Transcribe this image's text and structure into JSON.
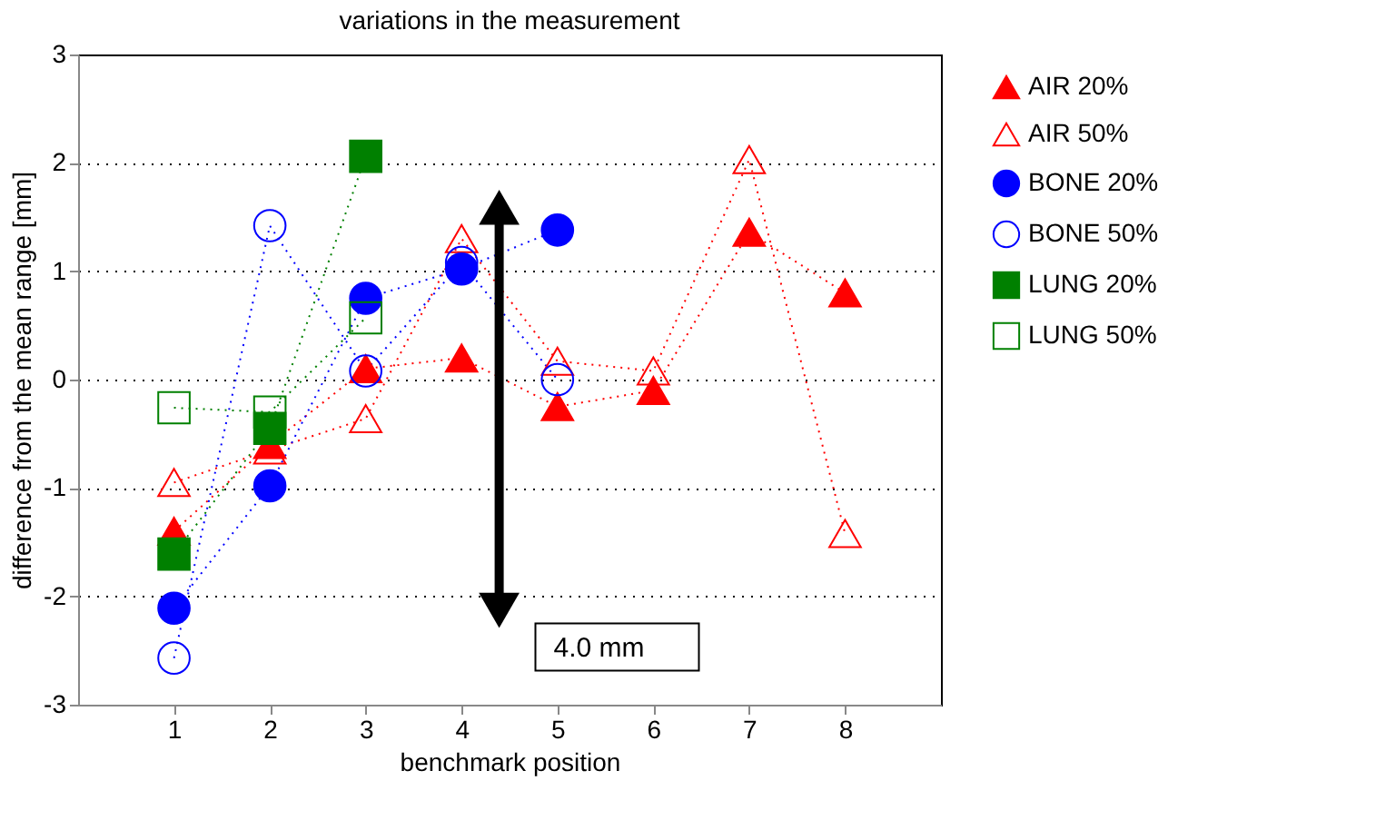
{
  "chart_data": {
    "type": "line",
    "title": "variations in the measurement",
    "xlabel": "benchmark position",
    "ylabel": "difference from the mean range [mm]",
    "x": [
      1,
      2,
      3,
      4,
      5,
      6,
      7,
      8
    ],
    "series": [
      {
        "name": "AIR 20%",
        "color": "#ff0000",
        "marker": "triangle",
        "values": [
          -1.4,
          -0.6,
          0.1,
          0.2,
          -0.25,
          -0.1,
          1.36,
          0.8
        ]
      },
      {
        "name": "AIR 50%",
        "color": "#ff0000",
        "marker": "triangle-open",
        "values": [
          -0.95,
          -0.65,
          -0.36,
          1.3,
          0.17,
          0.08,
          2.03,
          -1.42
        ]
      },
      {
        "name": "BONE 20%",
        "color": "#0000ff",
        "marker": "circle",
        "values": [
          -2.11,
          -0.98,
          0.75,
          1.02,
          1.38,
          null,
          null,
          null
        ]
      },
      {
        "name": "BONE 50%",
        "color": "#0000ff",
        "marker": "circle-open",
        "values": [
          -2.57,
          1.42,
          0.08,
          1.08,
          0.0,
          null,
          null,
          null
        ]
      },
      {
        "name": "LUNG 20%",
        "color": "#008000",
        "marker": "square",
        "values": [
          -1.61,
          -0.45,
          2.06,
          null,
          null,
          null,
          null,
          null
        ]
      },
      {
        "name": "LUNG 50%",
        "color": "#008000",
        "marker": "square-open",
        "values": [
          -0.26,
          -0.3,
          0.57,
          null,
          null,
          null,
          null,
          null
        ]
      }
    ],
    "xlim": [
      0,
      9
    ],
    "xticks": [
      1,
      2,
      3,
      4,
      5,
      6,
      7,
      8
    ],
    "ylim": [
      -3,
      3
    ],
    "yticks": [
      -3,
      -2,
      -1,
      0,
      1,
      2,
      3
    ],
    "grid": "y",
    "legend": "right",
    "line_style": "dotted",
    "annotations": [
      "4.0 mm"
    ]
  }
}
